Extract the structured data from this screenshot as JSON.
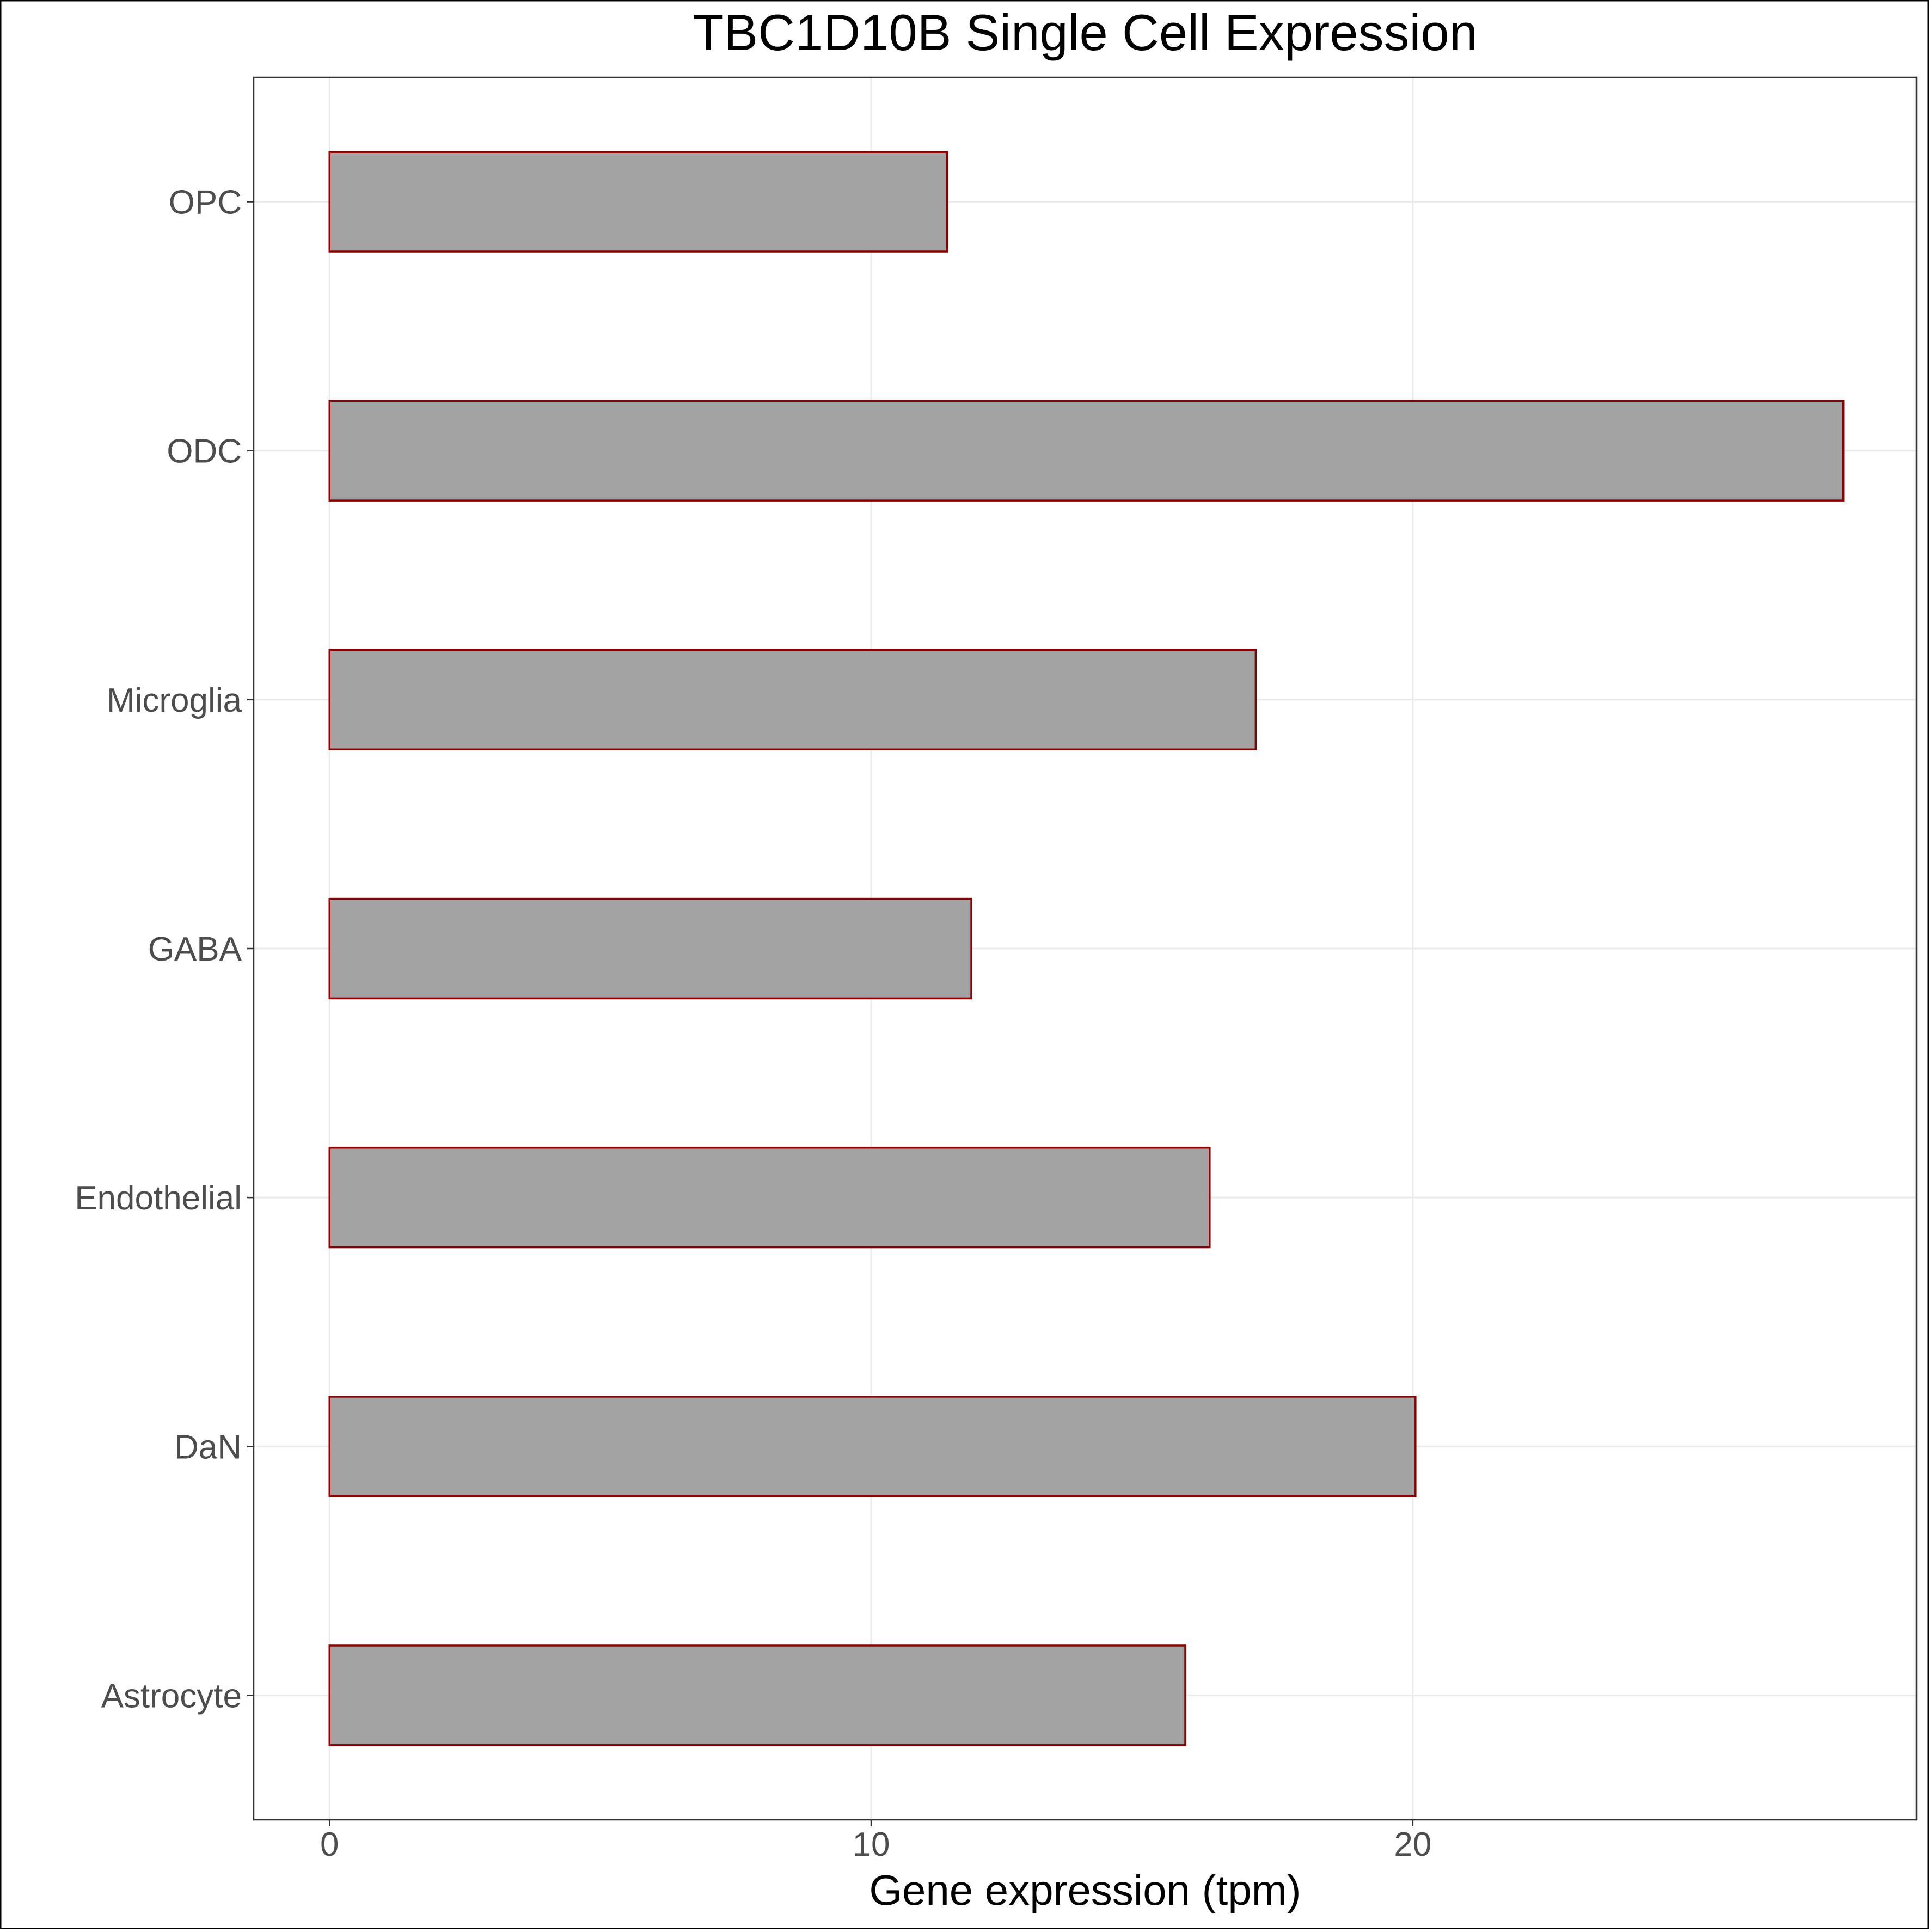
{
  "chart_data": {
    "type": "bar",
    "orientation": "horizontal",
    "title": "TBC1D10B Single Cell Expression",
    "xlabel": "Gene expression (tpm)",
    "ylabel": "",
    "categories": [
      "Astrocyte",
      "DaN",
      "Endothelial",
      "GABA",
      "Microglia",
      "ODC",
      "OPC"
    ],
    "values": [
      15.8,
      20.05,
      16.25,
      11.85,
      17.1,
      27.95,
      11.4
    ],
    "xlim": [
      -1.4,
      29.3
    ],
    "xticks": [
      "0",
      "10",
      "20"
    ],
    "xtick_values": [
      0,
      10,
      20
    ],
    "grid": true,
    "legend": "none",
    "colors": {
      "bar_fill": "#a3a3a3",
      "bar_stroke": "#8b0000",
      "grid": "#ebebeb",
      "panel_border": "#333333",
      "outer_border": "#000000"
    }
  }
}
